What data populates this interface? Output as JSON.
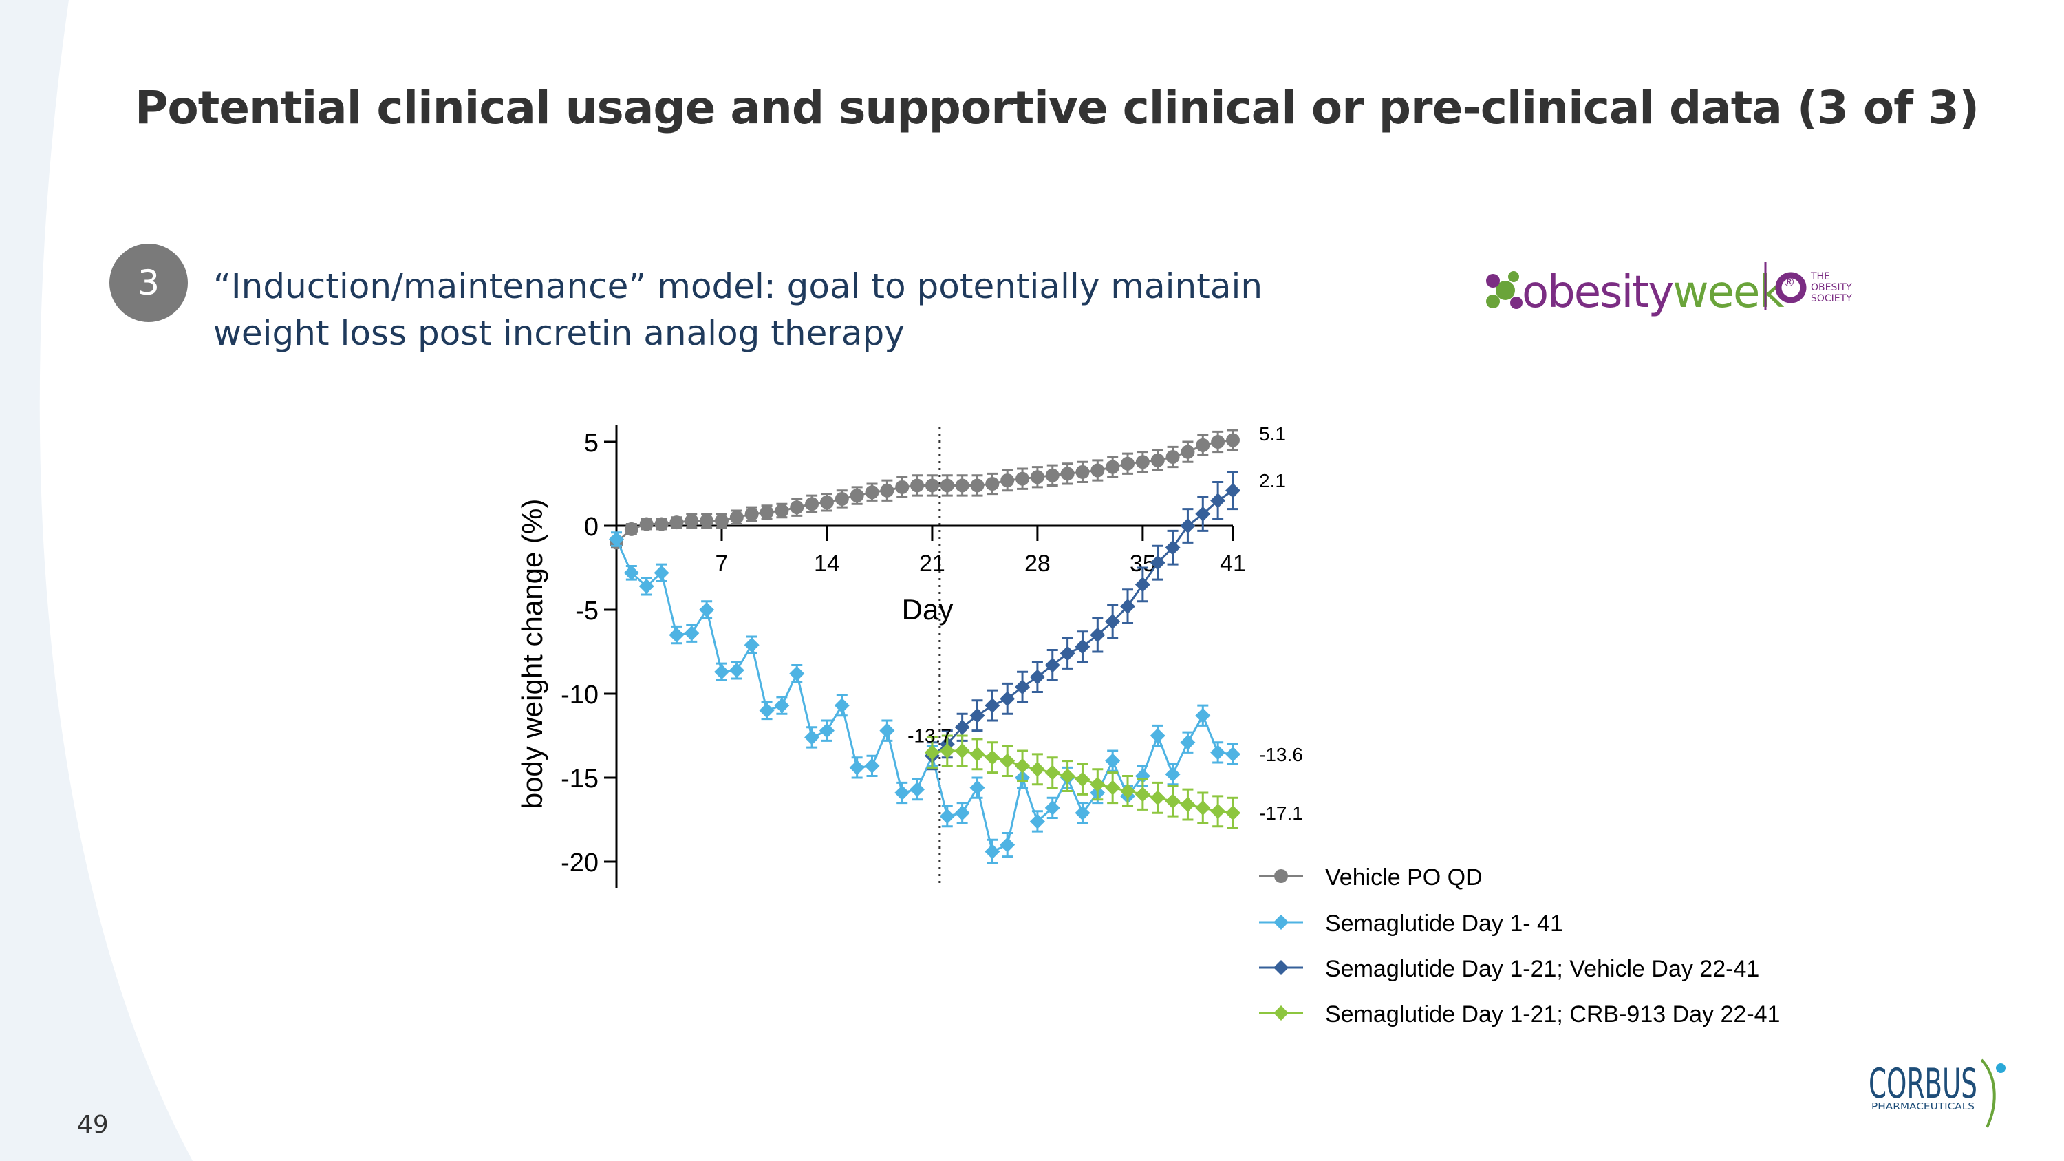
{
  "slide": {
    "title": "Potential clinical usage and supportive clinical or pre-clinical data (3 of 3)",
    "badge_number": "3",
    "subtitle_line1": "“Induction/maintenance” model: goal to potentially maintain",
    "subtitle_line2": "weight loss post incretin analog therapy",
    "page_number": "49"
  },
  "logos": {
    "obesityweek_prefix": "obesity",
    "obesityweek_suffix": "week",
    "obesityweek_mark": "®",
    "society_line1": "THE",
    "society_line2": "OBESITY",
    "society_line3": "SOCIETY",
    "corbus_name": "CORBUS",
    "corbus_sub": "PHARMACEUTICALS"
  },
  "colors": {
    "vehicle": "#7f7f7f",
    "sema_full": "#4eb3e3",
    "sema_vehicle": "#36609a",
    "sema_crb": "#8dc63f",
    "title": "#333333",
    "subtitle": "#1f3a5c",
    "badge": "#7a7a7a",
    "obesity_purple": "#7b2d83",
    "obesity_green": "#6aa43a",
    "corbus_navy": "#1f4e79"
  },
  "chart_data": {
    "type": "line",
    "xlabel": "Day",
    "ylabel": "body weight change (%)",
    "xlim": [
      0,
      41
    ],
    "ylim": [
      -22,
      6
    ],
    "x_ticks": [
      7,
      14,
      21,
      28,
      35,
      41
    ],
    "y_ticks": [
      5,
      0,
      -5,
      -10,
      -15,
      -20
    ],
    "x_tick_labels": [
      "7",
      "14",
      "21",
      "28",
      "35",
      "41"
    ],
    "y_tick_labels": [
      "5",
      "0",
      "-5",
      "-10",
      "-15",
      "-20"
    ],
    "reference_line_day": 21.5,
    "series": [
      {
        "name": "Vehicle PO QD",
        "color_key": "vehicle",
        "marker": "circle",
        "x": [
          0,
          1,
          2,
          3,
          4,
          5,
          6,
          7,
          8,
          9,
          10,
          11,
          12,
          13,
          14,
          15,
          16,
          17,
          18,
          19,
          20,
          21,
          22,
          23,
          24,
          25,
          26,
          27,
          28,
          29,
          30,
          31,
          32,
          33,
          34,
          35,
          36,
          37,
          38,
          39,
          40,
          41
        ],
        "values": [
          -1.0,
          -0.2,
          0.1,
          0.1,
          0.2,
          0.3,
          0.3,
          0.3,
          0.5,
          0.7,
          0.8,
          0.9,
          1.1,
          1.3,
          1.4,
          1.6,
          1.8,
          2.0,
          2.1,
          2.3,
          2.4,
          2.4,
          2.4,
          2.4,
          2.4,
          2.5,
          2.7,
          2.8,
          2.9,
          3.0,
          3.1,
          3.2,
          3.3,
          3.5,
          3.7,
          3.8,
          3.9,
          4.1,
          4.4,
          4.8,
          5.0,
          5.1
        ],
        "errors": [
          0.3,
          0.3,
          0.3,
          0.3,
          0.3,
          0.4,
          0.4,
          0.4,
          0.4,
          0.4,
          0.4,
          0.4,
          0.5,
          0.5,
          0.5,
          0.5,
          0.5,
          0.5,
          0.6,
          0.6,
          0.6,
          0.6,
          0.6,
          0.6,
          0.6,
          0.6,
          0.6,
          0.6,
          0.6,
          0.6,
          0.6,
          0.6,
          0.6,
          0.6,
          0.6,
          0.6,
          0.6,
          0.6,
          0.6,
          0.6,
          0.6,
          0.6
        ]
      },
      {
        "name": "Semaglutide Day 1- 41",
        "color_key": "sema_full",
        "marker": "diamond",
        "x": [
          0,
          1,
          2,
          3,
          4,
          5,
          6,
          7,
          8,
          9,
          10,
          11,
          12,
          13,
          14,
          15,
          16,
          17,
          18,
          19,
          20,
          21,
          22,
          23,
          24,
          25,
          26,
          27,
          28,
          29,
          30,
          31,
          32,
          33,
          34,
          35,
          36,
          37,
          38,
          39,
          40,
          41
        ],
        "values": [
          -0.8,
          -2.8,
          -3.6,
          -2.8,
          -6.5,
          -6.4,
          -5.0,
          -8.7,
          -8.6,
          -7.1,
          -11.0,
          -10.7,
          -8.8,
          -12.6,
          -12.2,
          -10.7,
          -14.4,
          -14.3,
          -12.2,
          -15.9,
          -15.7,
          -13.7,
          -17.3,
          -17.1,
          -15.6,
          -19.4,
          -19.0,
          -15.0,
          -17.6,
          -16.8,
          -15.0,
          -17.1,
          -15.9,
          -14.0,
          -16.1,
          -14.9,
          -12.5,
          -14.8,
          -12.9,
          -11.3,
          -13.5,
          -13.6
        ],
        "errors": [
          0.4,
          0.4,
          0.5,
          0.5,
          0.5,
          0.5,
          0.5,
          0.5,
          0.5,
          0.5,
          0.5,
          0.5,
          0.5,
          0.6,
          0.6,
          0.6,
          0.6,
          0.6,
          0.6,
          0.6,
          0.6,
          0.6,
          0.6,
          0.6,
          0.6,
          0.7,
          0.7,
          0.6,
          0.6,
          0.6,
          0.6,
          0.6,
          0.6,
          0.6,
          0.6,
          0.6,
          0.6,
          0.6,
          0.6,
          0.6,
          0.6,
          0.6
        ]
      },
      {
        "name": "Semaglutide Day 1-21; Vehicle Day 22-41",
        "color_key": "sema_vehicle",
        "marker": "diamond",
        "x": [
          21,
          22,
          23,
          24,
          25,
          26,
          27,
          28,
          29,
          30,
          31,
          32,
          33,
          34,
          35,
          36,
          37,
          38,
          39,
          40,
          41
        ],
        "values": [
          -13.7,
          -13.0,
          -12.0,
          -11.3,
          -10.7,
          -10.3,
          -9.6,
          -9.0,
          -8.3,
          -7.6,
          -7.2,
          -6.5,
          -5.7,
          -4.8,
          -3.5,
          -2.2,
          -1.3,
          0.0,
          0.7,
          1.5,
          2.1
        ],
        "errors": [
          0.8,
          0.8,
          0.8,
          0.9,
          0.9,
          0.9,
          0.9,
          0.9,
          0.9,
          0.9,
          0.9,
          1.0,
          1.0,
          1.0,
          1.0,
          1.0,
          1.0,
          1.0,
          1.0,
          1.1,
          1.1
        ]
      },
      {
        "name": "Semaglutide Day 1-21; CRB-913 Day 22-41",
        "color_key": "sema_crb",
        "marker": "diamond",
        "x": [
          21,
          22,
          23,
          24,
          25,
          26,
          27,
          28,
          29,
          30,
          31,
          32,
          33,
          34,
          35,
          36,
          37,
          38,
          39,
          40,
          41
        ],
        "values": [
          -13.5,
          -13.4,
          -13.4,
          -13.6,
          -13.8,
          -14.0,
          -14.3,
          -14.5,
          -14.7,
          -14.9,
          -15.1,
          -15.4,
          -15.6,
          -15.8,
          -16.0,
          -16.2,
          -16.4,
          -16.6,
          -16.8,
          -17.0,
          -17.1
        ],
        "errors": [
          0.9,
          0.9,
          0.9,
          0.9,
          0.9,
          0.9,
          0.9,
          0.9,
          0.9,
          0.9,
          0.9,
          0.9,
          0.9,
          0.9,
          0.9,
          0.9,
          0.9,
          0.9,
          0.9,
          0.9,
          0.9
        ]
      }
    ],
    "annotations": [
      {
        "text": "5.1",
        "day": 41,
        "value": 5.1
      },
      {
        "text": "2.1",
        "day": 41,
        "value": 2.1
      },
      {
        "text": "-13.6",
        "day": 41,
        "value": -13.6
      },
      {
        "text": "-17.1",
        "day": 41,
        "value": -17.1
      },
      {
        "text": "-13.7",
        "day": 21,
        "value": -13.7
      }
    ],
    "legend_position": "bottom-right"
  }
}
